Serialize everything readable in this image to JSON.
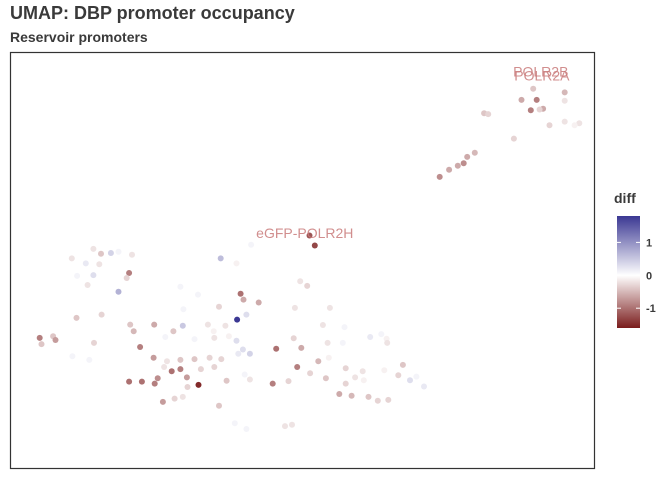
{
  "header": {
    "title": "UMAP: DBP promoter occupancy",
    "subtitle": "Reservoir promoters"
  },
  "chart_data": {
    "type": "scatter",
    "title": "UMAP: DBP promoter occupancy",
    "subtitle": "Reservoir promoters",
    "xlabel": "",
    "ylabel": "",
    "xlim": [
      0,
      100
    ],
    "ylim": [
      0,
      100
    ],
    "grid": false,
    "color_variable": "diff",
    "color_scale": {
      "low": "#7a1c1c",
      "mid": "#ffffff",
      "high": "#3b3893",
      "range": [
        -1.6,
        1.8
      ]
    },
    "legend": {
      "title": "diff",
      "ticks": [
        1,
        0,
        -1
      ],
      "tick_labels": [
        "1",
        "0",
        "-1"
      ],
      "placement": "right"
    },
    "annotations": [
      {
        "text": "POLR2B",
        "x": 90.8,
        "y": 94.2,
        "color": "#c97b7b"
      },
      {
        "text": "POLR2A",
        "x": 91.0,
        "y": 93.3,
        "color": "#c97b7b"
      },
      {
        "text": "eGFP-POLR2H",
        "x": 50.4,
        "y": 55.4,
        "color": "#c97b7b"
      }
    ],
    "points": [
      {
        "x": 89.5,
        "y": 91.3,
        "d": -0.4
      },
      {
        "x": 94.9,
        "y": 90.4,
        "d": -0.5
      },
      {
        "x": 87.5,
        "y": 88.6,
        "d": -0.6
      },
      {
        "x": 90.1,
        "y": 88.6,
        "d": -0.9
      },
      {
        "x": 94.9,
        "y": 88.4,
        "d": -0.2
      },
      {
        "x": 91.2,
        "y": 86.5,
        "d": -0.6
      },
      {
        "x": 89.1,
        "y": 86.1,
        "d": -0.9
      },
      {
        "x": 90.6,
        "y": 86.3,
        "d": -0.3
      },
      {
        "x": 81.1,
        "y": 85.4,
        "d": -0.4
      },
      {
        "x": 81.8,
        "y": 85.2,
        "d": -0.3
      },
      {
        "x": 92.3,
        "y": 82.5,
        "d": -0.3
      },
      {
        "x": 94.9,
        "y": 83.4,
        "d": -0.2
      },
      {
        "x": 97.4,
        "y": 83.0,
        "d": -0.2
      },
      {
        "x": 96.6,
        "y": 82.5,
        "d": -0.1
      },
      {
        "x": 86.2,
        "y": 79.3,
        "d": -0.3
      },
      {
        "x": 79.5,
        "y": 75.9,
        "d": -0.5
      },
      {
        "x": 78.2,
        "y": 74.9,
        "d": -0.6
      },
      {
        "x": 77.6,
        "y": 73.4,
        "d": -0.8
      },
      {
        "x": 76.6,
        "y": 72.8,
        "d": -0.6
      },
      {
        "x": 75.1,
        "y": 71.8,
        "d": -0.6
      },
      {
        "x": 73.5,
        "y": 70.1,
        "d": -0.8
      },
      {
        "x": 51.2,
        "y": 56.0,
        "d": -1.2
      },
      {
        "x": 52.1,
        "y": 53.6,
        "d": -1.3
      },
      {
        "x": 41.2,
        "y": 53.8,
        "d": 0.1
      },
      {
        "x": 14.2,
        "y": 52.8,
        "d": -0.2
      },
      {
        "x": 15.5,
        "y": 51.6,
        "d": -0.4
      },
      {
        "x": 17.2,
        "y": 51.8,
        "d": 0.4
      },
      {
        "x": 18.5,
        "y": 52.1,
        "d": 0.1
      },
      {
        "x": 20.8,
        "y": 51.4,
        "d": -0.2
      },
      {
        "x": 10.5,
        "y": 50.5,
        "d": -0.2
      },
      {
        "x": 12.9,
        "y": 49.3,
        "d": 0.2
      },
      {
        "x": 15.2,
        "y": 49.1,
        "d": -0.2
      },
      {
        "x": 36.0,
        "y": 50.5,
        "d": 0.6
      },
      {
        "x": 38.7,
        "y": 49.3,
        "d": -0.1
      },
      {
        "x": 20.3,
        "y": 47.0,
        "d": -0.9
      },
      {
        "x": 14.2,
        "y": 46.5,
        "d": 0.3
      },
      {
        "x": 11.4,
        "y": 46.3,
        "d": 0.1
      },
      {
        "x": 19.9,
        "y": 45.8,
        "d": -0.3
      },
      {
        "x": 13.2,
        "y": 44.1,
        "d": -0.2
      },
      {
        "x": 49.6,
        "y": 45.0,
        "d": -0.2
      },
      {
        "x": 50.8,
        "y": 43.9,
        "d": -0.3
      },
      {
        "x": 18.5,
        "y": 42.5,
        "d": 0.7
      },
      {
        "x": 29.1,
        "y": 43.7,
        "d": 0.1
      },
      {
        "x": 32.1,
        "y": 41.8,
        "d": 0.1
      },
      {
        "x": 39.4,
        "y": 42.0,
        "d": -1.0
      },
      {
        "x": 39.9,
        "y": 40.6,
        "d": -0.6
      },
      {
        "x": 42.5,
        "y": 39.9,
        "d": -0.6
      },
      {
        "x": 35.7,
        "y": 38.9,
        "d": -0.3
      },
      {
        "x": 29.6,
        "y": 38.3,
        "d": 0.1
      },
      {
        "x": 48.7,
        "y": 38.6,
        "d": -0.2
      },
      {
        "x": 54.7,
        "y": 38.6,
        "d": -0.2
      },
      {
        "x": 11.3,
        "y": 36.2,
        "d": -0.4
      },
      {
        "x": 15.6,
        "y": 37.0,
        "d": -0.3
      },
      {
        "x": 20.5,
        "y": 34.6,
        "d": -0.4
      },
      {
        "x": 38.8,
        "y": 35.8,
        "d": 1.8
      },
      {
        "x": 40.4,
        "y": 37.0,
        "d": 0.3
      },
      {
        "x": 24.6,
        "y": 34.6,
        "d": -0.6
      },
      {
        "x": 27.9,
        "y": 33.0,
        "d": -0.4
      },
      {
        "x": 33.8,
        "y": 34.6,
        "d": -0.2
      },
      {
        "x": 36.8,
        "y": 34.3,
        "d": -0.2
      },
      {
        "x": 34.8,
        "y": 33.0,
        "d": -0.1
      },
      {
        "x": 21.1,
        "y": 33.0,
        "d": -0.5
      },
      {
        "x": 29.5,
        "y": 34.3,
        "d": 0.5
      },
      {
        "x": 26.5,
        "y": 31.6,
        "d": 0.1
      },
      {
        "x": 31.5,
        "y": 31.1,
        "d": 0.1
      },
      {
        "x": 34.9,
        "y": 31.4,
        "d": -0.2
      },
      {
        "x": 37.4,
        "y": 31.8,
        "d": -0.1
      },
      {
        "x": 5.0,
        "y": 31.4,
        "d": -0.9
      },
      {
        "x": 7.3,
        "y": 31.8,
        "d": -0.4
      },
      {
        "x": 7.7,
        "y": 30.9,
        "d": -0.7
      },
      {
        "x": 5.3,
        "y": 29.9,
        "d": -0.4
      },
      {
        "x": 14.3,
        "y": 30.2,
        "d": -0.3
      },
      {
        "x": 22.2,
        "y": 29.2,
        "d": -0.9
      },
      {
        "x": 38.7,
        "y": 30.7,
        "d": 0.3
      },
      {
        "x": 39.8,
        "y": 28.6,
        "d": 0.3
      },
      {
        "x": 39.0,
        "y": 27.6,
        "d": 0.2
      },
      {
        "x": 41.0,
        "y": 27.6,
        "d": 0.4
      },
      {
        "x": 45.5,
        "y": 28.8,
        "d": -1.0
      },
      {
        "x": 48.5,
        "y": 31.3,
        "d": -0.3
      },
      {
        "x": 49.8,
        "y": 29.0,
        "d": -0.6
      },
      {
        "x": 54.3,
        "y": 30.2,
        "d": -0.2
      },
      {
        "x": 56.9,
        "y": 30.2,
        "d": 0.1
      },
      {
        "x": 61.6,
        "y": 31.6,
        "d": 0.2
      },
      {
        "x": 63.5,
        "y": 32.3,
        "d": 0.1
      },
      {
        "x": 64.4,
        "y": 31.2,
        "d": -0.1
      },
      {
        "x": 64.5,
        "y": 30.2,
        "d": -0.2
      },
      {
        "x": 57.2,
        "y": 34.0,
        "d": 0.1
      },
      {
        "x": 53.5,
        "y": 34.5,
        "d": -0.2
      },
      {
        "x": 10.6,
        "y": 27.0,
        "d": 0.1
      },
      {
        "x": 13.5,
        "y": 26.1,
        "d": 0.1
      },
      {
        "x": 24.5,
        "y": 26.6,
        "d": -0.7
      },
      {
        "x": 26.8,
        "y": 25.8,
        "d": -0.2
      },
      {
        "x": 29.1,
        "y": 26.1,
        "d": -0.4
      },
      {
        "x": 31.5,
        "y": 26.3,
        "d": -0.4
      },
      {
        "x": 34.1,
        "y": 26.6,
        "d": -0.3
      },
      {
        "x": 36.1,
        "y": 26.3,
        "d": -0.3
      },
      {
        "x": 29.1,
        "y": 23.9,
        "d": -0.9
      },
      {
        "x": 32.6,
        "y": 23.9,
        "d": -0.3
      },
      {
        "x": 34.9,
        "y": 24.4,
        "d": -0.3
      },
      {
        "x": 26.3,
        "y": 24.4,
        "d": -0.2
      },
      {
        "x": 27.6,
        "y": 23.4,
        "d": -1.0
      },
      {
        "x": 49.1,
        "y": 24.4,
        "d": -0.9
      },
      {
        "x": 52.7,
        "y": 25.8,
        "d": -0.5
      },
      {
        "x": 54.5,
        "y": 26.6,
        "d": -0.1
      },
      {
        "x": 51.3,
        "y": 22.9,
        "d": -0.3
      },
      {
        "x": 57.4,
        "y": 24.1,
        "d": -0.3
      },
      {
        "x": 60.3,
        "y": 23.4,
        "d": -0.2
      },
      {
        "x": 64.0,
        "y": 23.6,
        "d": -0.1
      },
      {
        "x": 66.4,
        "y": 22.4,
        "d": -0.3
      },
      {
        "x": 67.2,
        "y": 24.9,
        "d": -0.4
      },
      {
        "x": 68.4,
        "y": 21.2,
        "d": 0.3
      },
      {
        "x": 69.5,
        "y": 22.1,
        "d": 0.1
      },
      {
        "x": 70.8,
        "y": 19.7,
        "d": 0.2
      },
      {
        "x": 25.2,
        "y": 21.7,
        "d": -0.8
      },
      {
        "x": 30.2,
        "y": 21.9,
        "d": -0.7
      },
      {
        "x": 37.0,
        "y": 21.1,
        "d": -0.4
      },
      {
        "x": 40.1,
        "y": 22.6,
        "d": 0.1
      },
      {
        "x": 41.0,
        "y": 21.4,
        "d": -0.2
      },
      {
        "x": 20.3,
        "y": 20.9,
        "d": -1.0
      },
      {
        "x": 22.5,
        "y": 20.9,
        "d": -1.0
      },
      {
        "x": 24.7,
        "y": 20.4,
        "d": -0.9
      },
      {
        "x": 32.2,
        "y": 20.1,
        "d": -1.5
      },
      {
        "x": 30.3,
        "y": 19.6,
        "d": -0.3
      },
      {
        "x": 47.6,
        "y": 21.0,
        "d": -0.3
      },
      {
        "x": 54.0,
        "y": 21.7,
        "d": -0.4
      },
      {
        "x": 57.4,
        "y": 20.4,
        "d": -0.3
      },
      {
        "x": 59.0,
        "y": 21.9,
        "d": -0.2
      },
      {
        "x": 60.5,
        "y": 21.2,
        "d": -0.1
      },
      {
        "x": 44.9,
        "y": 20.4,
        "d": -0.9
      },
      {
        "x": 56.3,
        "y": 17.9,
        "d": -0.6
      },
      {
        "x": 58.4,
        "y": 17.5,
        "d": -0.5
      },
      {
        "x": 61.3,
        "y": 17.2,
        "d": -0.4
      },
      {
        "x": 62.9,
        "y": 16.3,
        "d": -0.3
      },
      {
        "x": 64.7,
        "y": 16.5,
        "d": -0.3
      },
      {
        "x": 26.1,
        "y": 16.0,
        "d": -0.7
      },
      {
        "x": 28.1,
        "y": 16.8,
        "d": -0.3
      },
      {
        "x": 29.5,
        "y": 17.2,
        "d": -0.2
      },
      {
        "x": 35.7,
        "y": 15.1,
        "d": -0.4
      },
      {
        "x": 38.4,
        "y": 10.9,
        "d": 0.1
      },
      {
        "x": 40.4,
        "y": 9.5,
        "d": 0.1
      },
      {
        "x": 47.0,
        "y": 10.2,
        "d": -0.2
      },
      {
        "x": 48.2,
        "y": 10.5,
        "d": -0.2
      }
    ]
  }
}
